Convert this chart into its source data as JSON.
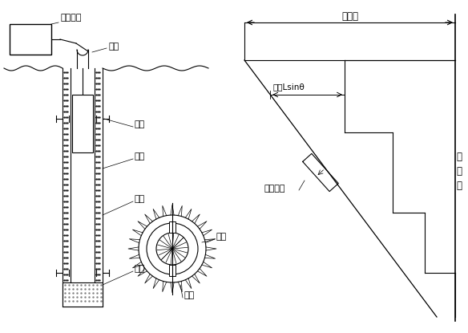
{
  "bg_color": "#ffffff",
  "line_color": "#000000",
  "fig_width": 5.84,
  "fig_height": 4.15,
  "dpi": 100,
  "labels": {
    "ceshe_shebei": "测读设备",
    "diandian": "电缆",
    "cetou": "测头",
    "zuankong": "钻孔",
    "daoguan": "导管",
    "huitian": "回填",
    "daocao": "导槽",
    "daolun": "导轮",
    "zongweiyi": "总位移",
    "weiyiLsin": "位移Lsinθ",
    "cedujuju": "测读间距",
    "yuanzhunxian_1": "原",
    "yuanzhunxian_2": "准",
    "yuanzhunxian_3": "线"
  }
}
